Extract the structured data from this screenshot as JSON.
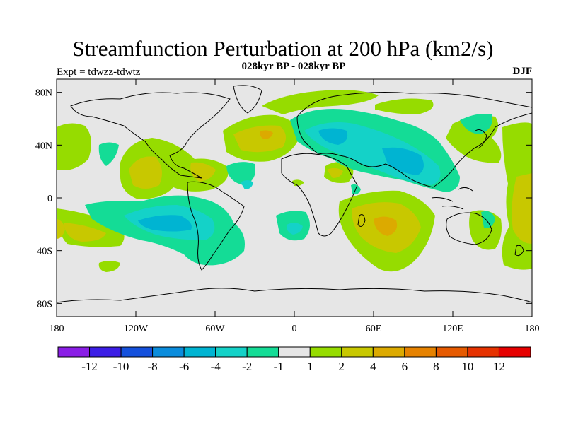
{
  "title": "Streamfunction Perturbation at 200 hPa (km2/s)",
  "subtitle": "028kyr BP - 028kyr BP",
  "experiment_label": "Expt = tdwzz-tdwtz",
  "season": "DJF",
  "lat_ticks": [
    {
      "lat": 80,
      "label": "80N"
    },
    {
      "lat": 40,
      "label": "40N"
    },
    {
      "lat": 0,
      "label": "0"
    },
    {
      "lat": -40,
      "label": "40S"
    },
    {
      "lat": -80,
      "label": "80S"
    }
  ],
  "lon_ticks": [
    {
      "lon": -180,
      "label": "180"
    },
    {
      "lon": -120,
      "label": "120W"
    },
    {
      "lon": -60,
      "label": "60W"
    },
    {
      "lon": 0,
      "label": "0"
    },
    {
      "lon": 60,
      "label": "60E"
    },
    {
      "lon": 120,
      "label": "120E"
    },
    {
      "lon": 180,
      "label": "180"
    }
  ],
  "colorbar": {
    "colors": [
      "#8a1ee6",
      "#3c1ee6",
      "#1450dc",
      "#0a8cdc",
      "#00b4d2",
      "#14d2c8",
      "#14dc96",
      "#e6e6e6",
      "#96dc00",
      "#c8c800",
      "#dcaa00",
      "#e68200",
      "#e65a00",
      "#e63200",
      "#e60000"
    ],
    "labels": [
      "-12",
      "-10",
      "-8",
      "-6",
      "-4",
      "-2",
      "-1",
      "1",
      "2",
      "4",
      "6",
      "8",
      "10",
      "12"
    ]
  },
  "colors": {
    "background": "#e6e6e6",
    "land_outline": "#000000"
  }
}
